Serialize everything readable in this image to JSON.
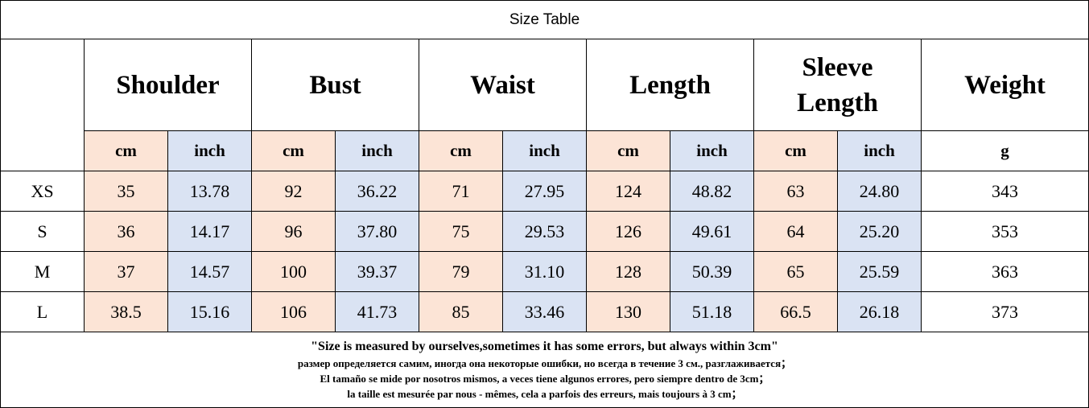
{
  "title": "Size Table",
  "table": {
    "groups": [
      "Shoulder",
      "Bust",
      "Waist",
      "Length",
      "Sleeve Length",
      "Weight"
    ],
    "units": [
      "cm",
      "inch",
      "cm",
      "inch",
      "cm",
      "inch",
      "cm",
      "inch",
      "cm",
      "inch",
      "g"
    ],
    "rows": [
      [
        "XS",
        "35",
        "13.78",
        "92",
        "36.22",
        "71",
        "27.95",
        "124",
        "48.82",
        "63",
        "24.80",
        "343"
      ],
      [
        "S",
        "36",
        "14.17",
        "96",
        "37.80",
        "75",
        "29.53",
        "126",
        "49.61",
        "64",
        "25.20",
        "353"
      ],
      [
        "M",
        "37",
        "14.57",
        "100",
        "39.37",
        "79",
        "31.10",
        "128",
        "50.39",
        "65",
        "25.59",
        "363"
      ],
      [
        "L",
        "38.5",
        "15.16",
        "106",
        "41.73",
        "85",
        "33.46",
        "130",
        "51.18",
        "66.5",
        "26.18",
        "373"
      ]
    ]
  },
  "notes": [
    "\"Size is measured by ourselves,sometimes it has some errors, but always within 3cm\"",
    "размер определяется самим, иногда она некоторые ошибки, но всегда в течение 3 см., разглаживается；",
    "El tamaño se mide por nosotros mismos, a veces tiene algunos errores, pero siempre dentro de 3cm；",
    "la taille est mesurée par nous - mêmes, cela a parfois des erreurs, mais toujours à 3 cm；"
  ]
}
